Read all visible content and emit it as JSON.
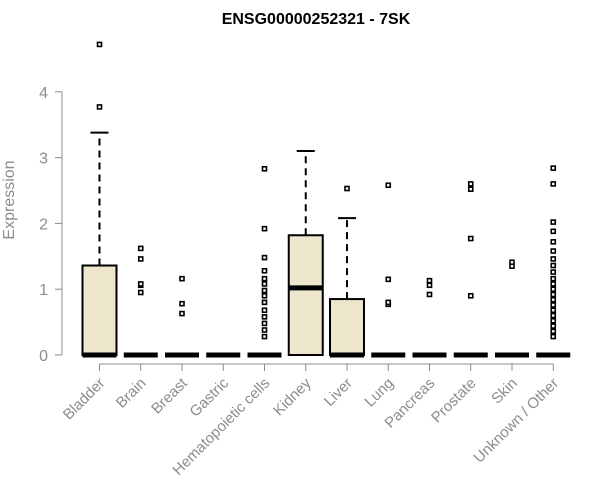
{
  "chart_data": {
    "type": "box",
    "title": "ENSG00000252321 - 7SK",
    "ylabel": "Expression",
    "xlabel": "",
    "ylim": [
      0,
      4.75
    ],
    "yticks": [
      0,
      1,
      2,
      3,
      4
    ],
    "grid": false,
    "box_fill": "#ede6cc",
    "box_stroke": "#000000",
    "outlier_color": "#000000",
    "categories": [
      "Bladder",
      "Brain",
      "Breast",
      "Gastric",
      "Hematopoietic cells",
      "Kidney",
      "Liver",
      "Lung",
      "Pancreas",
      "Prostate",
      "Skin",
      "Unknown / Other"
    ],
    "boxes": [
      {
        "category": "Bladder",
        "q1": 0,
        "median": 0,
        "q3": 1.36,
        "whisker_low": 0,
        "whisker_high": 3.38,
        "outliers": [
          3.77,
          4.72
        ]
      },
      {
        "category": "Brain",
        "q1": 0,
        "median": 0,
        "q3": 0,
        "whisker_low": 0,
        "whisker_high": 0,
        "outliers": [
          0.95,
          1.06,
          1.08,
          1.46,
          1.62
        ]
      },
      {
        "category": "Breast",
        "q1": 0,
        "median": 0,
        "q3": 0,
        "whisker_low": 0,
        "whisker_high": 0,
        "outliers": [
          0.63,
          0.78,
          1.16
        ]
      },
      {
        "category": "Gastric",
        "q1": 0,
        "median": 0,
        "q3": 0,
        "whisker_low": 0,
        "whisker_high": 0,
        "outliers": []
      },
      {
        "category": "Hematopoietic cells",
        "q1": 0,
        "median": 0,
        "q3": 0,
        "whisker_low": 0,
        "whisker_high": 0,
        "outliers": [
          0.28,
          0.38,
          0.48,
          0.58,
          0.68,
          0.8,
          0.9,
          0.98,
          1.08,
          1.16,
          1.28,
          1.48,
          1.92,
          2.83
        ]
      },
      {
        "category": "Kidney",
        "q1": 0,
        "median": 1.02,
        "q3": 1.82,
        "whisker_low": 0,
        "whisker_high": 3.1,
        "outliers": []
      },
      {
        "category": "Liver",
        "q1": 0,
        "median": 0,
        "q3": 0.85,
        "whisker_low": 0,
        "whisker_high": 2.08,
        "outliers": [
          2.53
        ]
      },
      {
        "category": "Lung",
        "q1": 0,
        "median": 0,
        "q3": 0,
        "whisker_low": 0,
        "whisker_high": 0,
        "outliers": [
          0.77,
          0.8,
          1.15,
          2.58
        ]
      },
      {
        "category": "Pancreas",
        "q1": 0,
        "median": 0,
        "q3": 0,
        "whisker_low": 0,
        "whisker_high": 0,
        "outliers": [
          0.92,
          1.06,
          1.13
        ]
      },
      {
        "category": "Prostate",
        "q1": 0,
        "median": 0,
        "q3": 0,
        "whisker_low": 0,
        "whisker_high": 0,
        "outliers": [
          0.9,
          1.77,
          2.52,
          2.6
        ]
      },
      {
        "category": "Skin",
        "q1": 0,
        "median": 0,
        "q3": 0,
        "whisker_low": 0,
        "whisker_high": 0,
        "outliers": [
          1.35,
          1.41
        ]
      },
      {
        "category": "Unknown / Other",
        "q1": 0,
        "median": 0,
        "q3": 0,
        "whisker_low": 0,
        "whisker_high": 0,
        "outliers": [
          0.28,
          0.36,
          0.44,
          0.52,
          0.6,
          0.68,
          0.76,
          0.84,
          0.92,
          1.0,
          1.08,
          1.16,
          1.26,
          1.36,
          1.46,
          1.58,
          1.72,
          1.88,
          2.02,
          2.6,
          2.84
        ]
      }
    ]
  }
}
